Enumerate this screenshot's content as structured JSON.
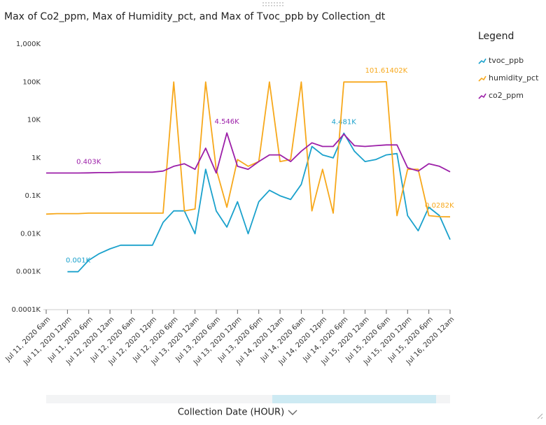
{
  "chart_data": {
    "type": "line",
    "title": "Max of Co2_ppm, Max of Humidity_pct, and Max of Tvoc_ppb by Collection_dt",
    "x_label": "Collection Date (HOUR)",
    "legend_title": "Legend",
    "legend_position": "right",
    "log_scale": true,
    "grid": false,
    "categories": [
      "Jul 11, 2020 6am",
      null,
      "Jul 11, 2020 12pm",
      null,
      "Jul 11, 2020 6pm",
      null,
      "Jul 12, 2020 12am",
      null,
      "Jul 12, 2020 6am",
      null,
      "Jul 12, 2020 12pm",
      null,
      "Jul 12, 2020 6pm",
      null,
      "Jul 13, 2020 12am",
      null,
      "Jul 13, 2020 6am",
      null,
      "Jul 13, 2020 12pm",
      null,
      "Jul 13, 2020 6pm",
      null,
      "Jul 14, 2020 12am",
      null,
      "Jul 14, 2020 6am",
      null,
      "Jul 14, 2020 12pm",
      null,
      "Jul 14, 2020 6pm",
      null,
      "Jul 15, 2020 12am",
      null,
      "Jul 15, 2020 6am",
      null,
      "Jul 15, 2020 12pm",
      null,
      "Jul 15, 2020 6pm",
      null,
      "Jul 16, 2020 12am"
    ],
    "ylim": [
      0.0001,
      1000
    ],
    "yticks": [
      {
        "value": 0.0001,
        "label": "0.0001K"
      },
      {
        "value": 0.001,
        "label": "0.001K"
      },
      {
        "value": 0.01,
        "label": "0.01K"
      },
      {
        "value": 0.1,
        "label": "0.1K"
      },
      {
        "value": 1,
        "label": "1K"
      },
      {
        "value": 10,
        "label": "10K"
      },
      {
        "value": 100,
        "label": "100K"
      },
      {
        "value": 1000,
        "label": "1,000K"
      }
    ],
    "series": [
      {
        "name": "tvoc_ppb",
        "color": "#1aa1cc",
        "values": [
          null,
          null,
          0.001,
          0.001,
          0.002,
          0.003,
          0.004,
          0.005,
          0.005,
          0.005,
          0.005,
          0.02,
          0.04,
          0.04,
          0.01,
          0.5,
          0.04,
          0.015,
          0.07,
          0.01,
          0.07,
          0.14,
          0.1,
          0.08,
          0.2,
          2,
          1.2,
          1,
          4.481,
          1.5,
          0.8,
          0.9,
          1.2,
          1.3,
          0.03,
          0.012,
          0.05,
          0.03,
          0.007
        ],
        "value_labels": [
          null,
          null,
          null,
          "0.001K",
          null,
          null,
          null,
          null,
          null,
          null,
          null,
          null,
          null,
          null,
          null,
          null,
          null,
          null,
          null,
          null,
          null,
          null,
          null,
          null,
          null,
          null,
          null,
          null,
          "4.481K",
          null,
          null,
          null,
          null,
          null,
          null,
          null,
          null,
          null,
          null
        ]
      },
      {
        "name": "humidity_pct",
        "color": "#f7a81b",
        "values": [
          0.033,
          0.034,
          0.034,
          0.034,
          0.035,
          0.035,
          0.035,
          0.035,
          0.035,
          0.035,
          0.035,
          0.035,
          100,
          0.04,
          0.045,
          100,
          0.5,
          0.05,
          0.9,
          0.6,
          0.8,
          100,
          0.8,
          0.9,
          100,
          0.04,
          0.5,
          0.035,
          100,
          100,
          100,
          100,
          101.61402,
          0.03,
          0.5,
          0.5,
          0.03,
          0.0282,
          0.028
        ],
        "value_labels": [
          null,
          null,
          null,
          null,
          null,
          null,
          null,
          null,
          null,
          null,
          null,
          null,
          null,
          null,
          null,
          null,
          null,
          null,
          null,
          null,
          null,
          null,
          null,
          null,
          null,
          null,
          null,
          null,
          null,
          null,
          null,
          null,
          "101.61402K",
          null,
          null,
          null,
          null,
          "0.0282K",
          null
        ]
      },
      {
        "name": "co2_ppm",
        "color": "#9c1fa8",
        "values": [
          0.4,
          0.4,
          0.4,
          0.4,
          0.403,
          0.41,
          0.41,
          0.42,
          0.42,
          0.42,
          0.42,
          0.45,
          0.6,
          0.7,
          0.5,
          1.8,
          0.4,
          4.546,
          0.6,
          0.5,
          0.8,
          1.2,
          1.2,
          0.8,
          1.5,
          2.5,
          2,
          2,
          4.2,
          2.1,
          2,
          2.1,
          2.2,
          2.2,
          0.55,
          0.45,
          0.7,
          0.6,
          0.43
        ],
        "value_labels": [
          null,
          null,
          null,
          null,
          "0.403K",
          null,
          null,
          null,
          null,
          null,
          null,
          null,
          null,
          null,
          null,
          null,
          null,
          "4.546K",
          null,
          null,
          null,
          null,
          null,
          null,
          null,
          null,
          null,
          null,
          null,
          null,
          null,
          null,
          null,
          null,
          null,
          null,
          null,
          null,
          null
        ]
      }
    ]
  }
}
